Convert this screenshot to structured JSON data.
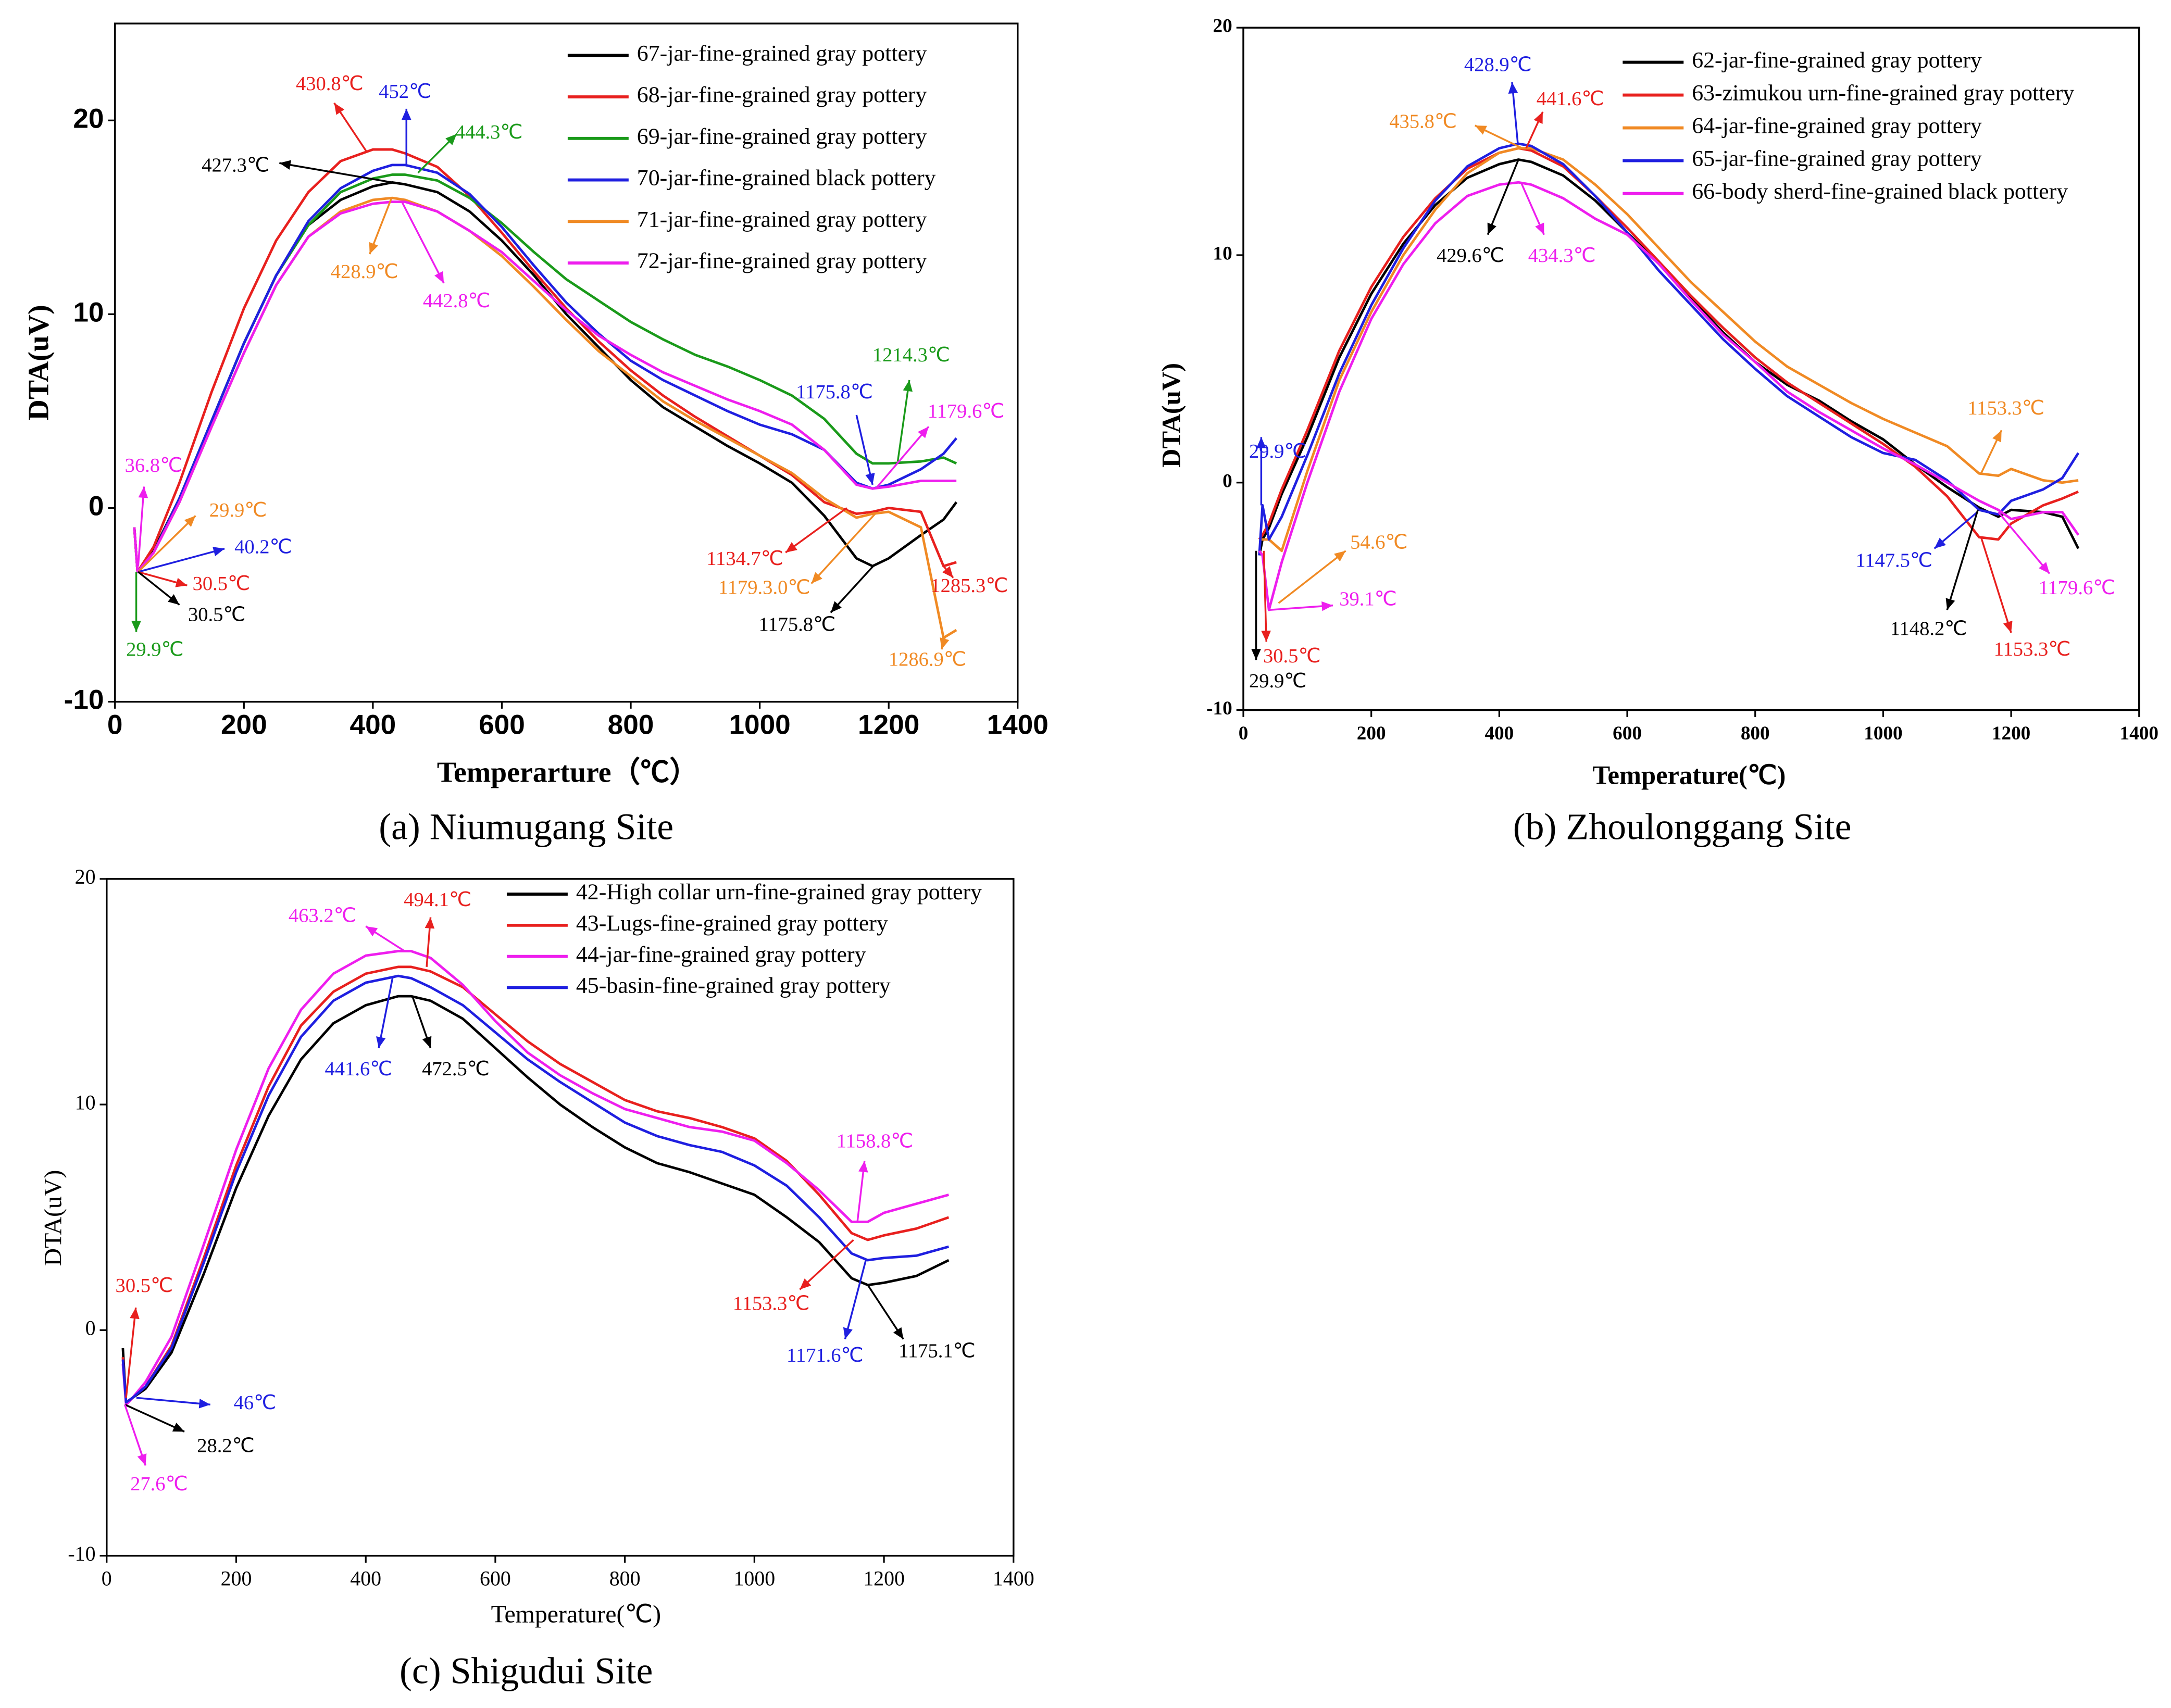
{
  "chart_data": [
    {
      "type": "line",
      "caption": "(a) Niumugang Site",
      "x_label": "Temperarture（℃）",
      "y_label": "DTA(uV)",
      "xlim": [
        0,
        1400
      ],
      "ylim": [
        -10,
        25
      ],
      "xticks": [
        0,
        200,
        400,
        600,
        800,
        1000,
        1200,
        1400
      ],
      "yticks": [
        -10,
        0,
        10,
        20
      ],
      "x": [
        30,
        35,
        60,
        100,
        150,
        200,
        250,
        300,
        350,
        400,
        430,
        450,
        500,
        550,
        600,
        650,
        700,
        750,
        800,
        850,
        900,
        950,
        1000,
        1050,
        1100,
        1150,
        1175,
        1200,
        1250,
        1285,
        1305
      ],
      "series": [
        {
          "name": "67-jar-fine-grained gray pottery",
          "color": "#000000",
          "values": [
            -1,
            -3.3,
            -2.2,
            0.5,
            4.5,
            8.5,
            12,
            14.6,
            15.9,
            16.6,
            16.8,
            16.7,
            16.3,
            15.3,
            13.8,
            12.0,
            10.0,
            8.3,
            6.6,
            5.2,
            4.2,
            3.2,
            2.3,
            1.3,
            -0.4,
            -2.6,
            -3.0,
            -2.6,
            -1.4,
            -0.6,
            0.3
          ]
        },
        {
          "name": "68-jar-fine-grained gray pottery",
          "color": "#e8201e",
          "values": [
            -1,
            -3.3,
            -2,
            1.3,
            6,
            10.3,
            13.8,
            16.3,
            17.9,
            18.5,
            18.5,
            18.3,
            17.6,
            16.1,
            14.2,
            12.2,
            10.3,
            8.6,
            7.1,
            5.8,
            4.7,
            3.7,
            2.7,
            1.7,
            0.3,
            -0.3,
            -0.2,
            0,
            -0.2,
            -3.0,
            -2.8
          ]
        },
        {
          "name": "69-jar-fine-grained gray pottery",
          "color": "#1a9a1a",
          "values": [
            -1,
            -3.3,
            -2.3,
            0.5,
            4.5,
            8.5,
            12,
            14.6,
            16.3,
            17.0,
            17.2,
            17.2,
            16.9,
            16.0,
            14.7,
            13.2,
            11.8,
            10.7,
            9.6,
            8.7,
            7.9,
            7.3,
            6.6,
            5.8,
            4.6,
            2.8,
            2.3,
            2.3,
            2.4,
            2.6,
            2.3
          ]
        },
        {
          "name": "70-jar-fine-grained black pottery",
          "color": "#1f1fe0",
          "values": [
            -1,
            -3.3,
            -2.3,
            0.5,
            4.5,
            8.5,
            12,
            14.8,
            16.5,
            17.4,
            17.7,
            17.7,
            17.3,
            16.2,
            14.5,
            12.5,
            10.6,
            9.0,
            7.6,
            6.6,
            5.8,
            5.0,
            4.3,
            3.8,
            3.0,
            1.3,
            1.0,
            1.2,
            2.0,
            2.8,
            3.6
          ]
        },
        {
          "name": "71-jar-fine-grained gray pottery",
          "color": "#f08a24",
          "values": [
            -1,
            -3.3,
            -2.3,
            0.3,
            4.2,
            8,
            11.5,
            14,
            15.3,
            15.9,
            16.0,
            15.9,
            15.3,
            14.3,
            13.0,
            11.4,
            9.7,
            8.1,
            6.8,
            5.5,
            4.5,
            3.6,
            2.7,
            1.8,
            0.5,
            -0.5,
            -0.3,
            -0.2,
            -1.0,
            -6.7,
            -6.3
          ]
        },
        {
          "name": "72-jar-fine-grained gray pottery",
          "color": "#ee1eee",
          "values": [
            -1,
            -3.3,
            -2.3,
            0.3,
            4.2,
            8,
            11.5,
            14,
            15.2,
            15.7,
            15.8,
            15.8,
            15.3,
            14.3,
            13.2,
            11.7,
            10.2,
            8.9,
            7.9,
            7.0,
            6.3,
            5.6,
            5.0,
            4.3,
            3.0,
            1.2,
            1.0,
            1.1,
            1.4,
            1.4,
            1.4
          ]
        }
      ],
      "annotations": [
        {
          "text": "430.8℃",
          "color": "#e8201e"
        },
        {
          "text": "452℃",
          "color": "#1f1fe0"
        },
        {
          "text": "444.3℃",
          "color": "#1a9a1a"
        },
        {
          "text": "427.3℃",
          "color": "#000000"
        },
        {
          "text": "428.9℃",
          "color": "#f08a24"
        },
        {
          "text": "442.8℃",
          "color": "#ee1eee"
        },
        {
          "text": "36.8℃",
          "color": "#ee1eee"
        },
        {
          "text": "29.9℃",
          "color": "#f08a24"
        },
        {
          "text": "40.2℃",
          "color": "#1f1fe0"
        },
        {
          "text": "30.5℃",
          "color": "#e8201e"
        },
        {
          "text": "30.5℃",
          "color": "#000000"
        },
        {
          "text": "29.9℃",
          "color": "#1a9a1a"
        },
        {
          "text": "1214.3℃",
          "color": "#1a9a1a"
        },
        {
          "text": "1175.8℃",
          "color": "#1f1fe0"
        },
        {
          "text": "1179.6℃",
          "color": "#ee1eee"
        },
        {
          "text": "1134.7℃",
          "color": "#e8201e"
        },
        {
          "text": "1285.3℃",
          "color": "#e8201e"
        },
        {
          "text": "1179.3.0℃",
          "color": "#f08a24"
        },
        {
          "text": "1175.8℃",
          "color": "#000000"
        },
        {
          "text": "1286.9℃",
          "color": "#f08a24"
        }
      ]
    },
    {
      "type": "line",
      "caption": "(b) Zhoulonggang Site",
      "x_label": "Temperature(℃)",
      "y_label": "DTA(uV)",
      "xlim": [
        0,
        1400
      ],
      "ylim": [
        -10,
        20
      ],
      "xticks": [
        0,
        200,
        400,
        600,
        800,
        1000,
        1200,
        1400
      ],
      "yticks": [
        -10,
        0,
        10,
        20
      ],
      "x": [
        25,
        30,
        40,
        60,
        100,
        150,
        200,
        250,
        300,
        350,
        400,
        430,
        450,
        500,
        550,
        600,
        650,
        700,
        750,
        800,
        850,
        900,
        950,
        1000,
        1050,
        1100,
        1150,
        1180,
        1200,
        1250,
        1280,
        1305
      ],
      "series": [
        {
          "name": "62-jar-fine-grained gray pottery",
          "color": "#000000",
          "values": [
            -3.2,
            -2.5,
            -2.0,
            -0.5,
            2.0,
            5.5,
            8.3,
            10.5,
            12.2,
            13.4,
            14.0,
            14.2,
            14.1,
            13.5,
            12.4,
            11.0,
            9.6,
            8.1,
            6.6,
            5.3,
            4.3,
            3.6,
            2.7,
            1.9,
            0.8,
            -0.2,
            -1.1,
            -1.5,
            -1.2,
            -1.3,
            -1.5,
            -2.9
          ]
        },
        {
          "name": "63-zimukou urn-fine-grained gray pottery",
          "color": "#e8201e",
          "values": [
            -2.5,
            -2.3,
            -1.8,
            -0.3,
            2.3,
            5.8,
            8.6,
            10.8,
            12.5,
            13.8,
            14.5,
            14.7,
            14.6,
            13.9,
            12.6,
            11.2,
            9.7,
            8.2,
            6.8,
            5.5,
            4.4,
            3.5,
            2.6,
            1.7,
            0.7,
            -0.6,
            -2.4,
            -2.5,
            -1.8,
            -1.0,
            -0.7,
            -0.4
          ]
        },
        {
          "name": "64-jar-fine-grained gray pottery",
          "color": "#f08a24",
          "values": [
            -2.5,
            -2.5,
            -2.5,
            -3.0,
            0.5,
            4.5,
            7.5,
            10.0,
            12.0,
            13.6,
            14.5,
            14.7,
            14.7,
            14.2,
            13.1,
            11.8,
            10.3,
            8.8,
            7.5,
            6.2,
            5.1,
            4.3,
            3.5,
            2.8,
            2.2,
            1.6,
            0.4,
            0.3,
            0.6,
            0.1,
            0.0,
            0.1
          ]
        },
        {
          "name": "65-jar-fine-grained gray pottery",
          "color": "#1f1fe0",
          "values": [
            -3.2,
            -1.0,
            -2.5,
            -1.5,
            1.2,
            4.8,
            7.8,
            10.3,
            12.4,
            13.9,
            14.7,
            14.9,
            14.8,
            14.0,
            12.6,
            11.0,
            9.3,
            7.8,
            6.3,
            5.0,
            3.8,
            2.9,
            2.0,
            1.3,
            1.0,
            0.1,
            -1.2,
            -1.4,
            -0.8,
            -0.3,
            0.2,
            1.3
          ]
        },
        {
          "name": "66-body sherd-fine-grained black pottery",
          "color": "#ee1eee",
          "values": [
            -3.0,
            -3.2,
            -5.6,
            -3.5,
            0.0,
            4.0,
            7.2,
            9.6,
            11.4,
            12.6,
            13.1,
            13.2,
            13.1,
            12.5,
            11.6,
            10.9,
            9.6,
            8.0,
            6.5,
            5.3,
            4.0,
            3.1,
            2.3,
            1.5,
            0.8,
            0.0,
            -0.8,
            -1.2,
            -1.6,
            -1.3,
            -1.3,
            -2.3
          ]
        }
      ],
      "annotations": [
        {
          "text": "428.9℃",
          "color": "#1f1fe0"
        },
        {
          "text": "441.6℃",
          "color": "#e8201e"
        },
        {
          "text": "435.8℃",
          "color": "#f08a24"
        },
        {
          "text": "429.6℃",
          "color": "#000000"
        },
        {
          "text": "434.3℃",
          "color": "#ee1eee"
        },
        {
          "text": "29.9℃",
          "color": "#1f1fe0"
        },
        {
          "text": "54.6℃",
          "color": "#f08a24"
        },
        {
          "text": "39.1℃",
          "color": "#ee1eee"
        },
        {
          "text": "30.5℃",
          "color": "#e8201e"
        },
        {
          "text": "29.9℃",
          "color": "#000000"
        },
        {
          "text": "1153.3℃",
          "color": "#f08a24"
        },
        {
          "text": "1147.5℃",
          "color": "#1f1fe0"
        },
        {
          "text": "1179.6℃",
          "color": "#ee1eee"
        },
        {
          "text": "1148.2℃",
          "color": "#000000"
        },
        {
          "text": "1153.3℃",
          "color": "#e8201e"
        }
      ]
    },
    {
      "type": "line",
      "caption": "(c) Shigudui Site",
      "x_label": "Temperature(℃)",
      "y_label": "DTA(uV)",
      "xlim": [
        0,
        1400
      ],
      "ylim": [
        -10,
        20
      ],
      "xticks": [
        0,
        200,
        400,
        600,
        800,
        1000,
        1200,
        1400
      ],
      "yticks": [
        -10,
        0,
        10,
        20
      ],
      "x": [
        25,
        30,
        40,
        60,
        100,
        150,
        200,
        250,
        300,
        350,
        400,
        450,
        470,
        500,
        550,
        600,
        650,
        700,
        750,
        800,
        850,
        900,
        950,
        1000,
        1050,
        1100,
        1150,
        1175,
        1200,
        1250,
        1300
      ],
      "series": [
        {
          "name": "42-High collar urn-fine-grained gray pottery",
          "color": "#000000",
          "values": [
            -0.8,
            -3.3,
            -3.0,
            -2.6,
            -1.0,
            2.5,
            6.3,
            9.5,
            12.0,
            13.6,
            14.4,
            14.8,
            14.8,
            14.6,
            13.8,
            12.5,
            11.2,
            10.0,
            9.0,
            8.1,
            7.4,
            7.0,
            6.5,
            6.0,
            5.0,
            3.9,
            2.3,
            2.0,
            2.1,
            2.4,
            3.1
          ]
        },
        {
          "name": "43-Lugs-fine-grained gray pottery",
          "color": "#e8201e",
          "values": [
            -1.2,
            -3.2,
            -3.0,
            -2.5,
            -0.7,
            3.2,
            7.3,
            10.8,
            13.5,
            15.0,
            15.8,
            16.1,
            16.1,
            15.9,
            15.2,
            14.0,
            12.8,
            11.8,
            11.0,
            10.2,
            9.7,
            9.4,
            9.0,
            8.5,
            7.5,
            6.0,
            4.3,
            4.0,
            4.2,
            4.5,
            5.0
          ]
        },
        {
          "name": "44-jar-fine-grained gray pottery",
          "color": "#ee1eee",
          "values": [
            -1.5,
            -3.3,
            -3.0,
            -2.3,
            -0.3,
            3.8,
            8.0,
            11.6,
            14.2,
            15.8,
            16.6,
            16.8,
            16.8,
            16.5,
            15.3,
            13.7,
            12.3,
            11.3,
            10.5,
            9.8,
            9.4,
            9.0,
            8.8,
            8.4,
            7.4,
            6.2,
            4.8,
            4.8,
            5.2,
            5.6,
            6.0
          ]
        },
        {
          "name": "45-basin-fine-grained gray pottery",
          "color": "#1f1fe0",
          "values": [
            -1.3,
            -3.2,
            -3.0,
            -2.5,
            -0.8,
            3.0,
            7.0,
            10.4,
            13.0,
            14.6,
            15.4,
            15.7,
            15.6,
            15.2,
            14.4,
            13.2,
            12.0,
            11.0,
            10.1,
            9.2,
            8.6,
            8.2,
            7.9,
            7.3,
            6.4,
            5.0,
            3.4,
            3.1,
            3.2,
            3.3,
            3.7
          ]
        }
      ],
      "annotations": [
        {
          "text": "463.2℃",
          "color": "#ee1eee"
        },
        {
          "text": "494.1℃",
          "color": "#e8201e"
        },
        {
          "text": "441.6℃",
          "color": "#1f1fe0"
        },
        {
          "text": "472.5℃",
          "color": "#000000"
        },
        {
          "text": "30.5℃",
          "color": "#e8201e"
        },
        {
          "text": "46℃",
          "color": "#1f1fe0"
        },
        {
          "text": "28.2℃",
          "color": "#000000"
        },
        {
          "text": "27.6℃",
          "color": "#ee1eee"
        },
        {
          "text": "1158.8℃",
          "color": "#ee1eee"
        },
        {
          "text": "1153.3℃",
          "color": "#e8201e"
        },
        {
          "text": "1171.6℃",
          "color": "#1f1fe0"
        },
        {
          "text": "1175.1℃",
          "color": "#000000"
        }
      ]
    }
  ]
}
